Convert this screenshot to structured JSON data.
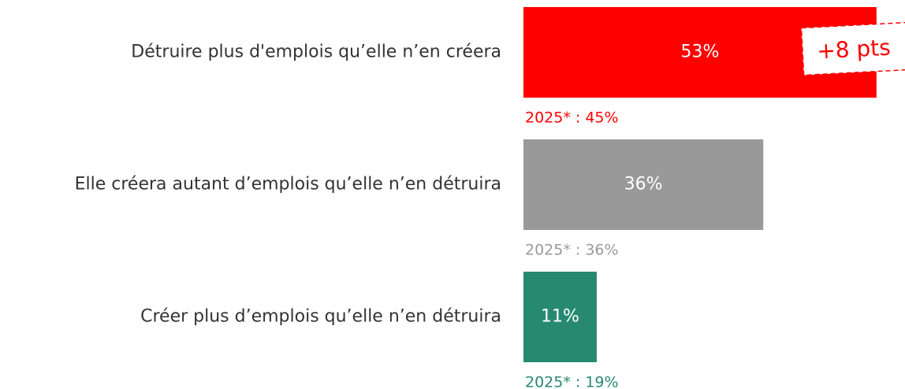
{
  "chart_data": {
    "type": "hbar",
    "categories": [
      "Détruire plus d'emplois qu’elle n’en créera",
      "Elle créera autant d’emplois qu’elle n’en détruira",
      "Créer plus d’emplois qu’elle n’en détruira"
    ],
    "values": [
      53,
      36,
      11
    ],
    "value_labels": [
      "53%",
      "36%",
      "11%"
    ],
    "colors": [
      "#ff0000",
      "#999999",
      "#278a70"
    ],
    "previous_labels": [
      "2025* : 45%",
      "2025* : 36%",
      "2025* : 19%"
    ],
    "annotation": "+8 pts"
  }
}
